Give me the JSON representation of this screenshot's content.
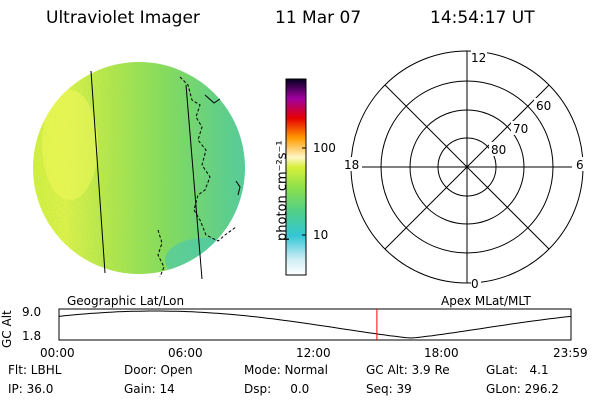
{
  "header": {
    "instrument": "Ultraviolet Imager",
    "date": "11 Mar 07",
    "time": "14:54:17 UT"
  },
  "colorbar": {
    "unit_label": "photon cm⁻²s⁻¹",
    "ticks": [
      "100",
      "10"
    ],
    "scale": "log"
  },
  "polar_plot": {
    "mlt_labels": {
      "top": "12",
      "bottom": "0",
      "left": "18",
      "right": "6"
    },
    "lat_labels": [
      "60",
      "70",
      "80"
    ]
  },
  "timeline": {
    "left_title": "Geographic Lat/Lon",
    "right_title": "Apex MLat/MLT",
    "y_axis_label": "GC Alt",
    "y_ticks": [
      "9.0",
      "1.8"
    ],
    "x_ticks": [
      "00:00",
      "06:00",
      "12:00",
      "18:00",
      "23:59"
    ],
    "current_time_hours": 14.9,
    "marker_color": "#ff0000"
  },
  "info": {
    "row1": {
      "filter": "Flt: LBHL",
      "door": "Door: Open",
      "mode": "Mode: Normal",
      "gc_alt": "GC Alt: 3.9 Re",
      "glat": "GLat:   4.1"
    },
    "row2": {
      "ip": "IP: 36.0",
      "gain": "Gain: 14",
      "dsp": "Dsp:     0.0",
      "seq": "Seq: 39",
      "glon": "GLon: 296.2"
    }
  }
}
